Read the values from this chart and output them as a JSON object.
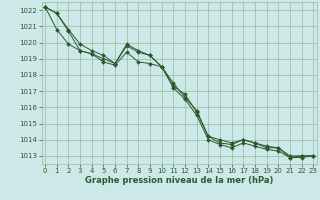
{
  "background_color": "#cce8e8",
  "grid_color": "#99bb99",
  "line_color": "#2d5a2d",
  "marker_color": "#2d5a2d",
  "text_color": "#2d5a2d",
  "xlabel": "Graphe pression niveau de la mer (hPa)",
  "ylim": [
    1012.5,
    1022.5
  ],
  "xlim": [
    -0.3,
    23.3
  ],
  "yticks": [
    1013,
    1014,
    1015,
    1016,
    1017,
    1018,
    1019,
    1020,
    1021,
    1022
  ],
  "xticks": [
    0,
    1,
    2,
    3,
    4,
    5,
    6,
    7,
    8,
    9,
    10,
    11,
    12,
    13,
    14,
    15,
    16,
    17,
    18,
    19,
    20,
    21,
    22,
    23
  ],
  "series": [
    [
      1022.2,
      1021.8,
      1020.8,
      1019.9,
      1019.5,
      1019.2,
      1018.7,
      1019.9,
      1019.5,
      1019.2,
      1018.5,
      1017.3,
      1016.8,
      1015.7,
      1014.2,
      1013.8,
      1013.7,
      1014.0,
      1013.8,
      1013.5,
      1013.5,
      1012.9,
      1013.0,
      1013.0
    ],
    [
      1022.2,
      1020.8,
      1019.9,
      1019.5,
      1019.3,
      1019.0,
      1018.7,
      1019.8,
      1019.4,
      1019.2,
      1018.5,
      1017.5,
      1016.6,
      1015.8,
      1014.2,
      1014.0,
      1013.8,
      1014.0,
      1013.8,
      1013.6,
      1013.5,
      1013.0,
      1013.0,
      1013.0
    ],
    [
      1022.2,
      1021.8,
      1020.7,
      1019.5,
      1019.3,
      1018.8,
      1018.6,
      1019.4,
      1018.8,
      1018.7,
      1018.5,
      1017.2,
      1016.5,
      1015.5,
      1014.0,
      1013.7,
      1013.5,
      1013.8,
      1013.6,
      1013.4,
      1013.3,
      1012.9,
      1012.9,
      1013.0
    ]
  ],
  "title_fontsize": 6,
  "tick_fontsize": 5,
  "xlabel_fontsize": 6,
  "linewidth": 0.7,
  "markersize": 2.0
}
